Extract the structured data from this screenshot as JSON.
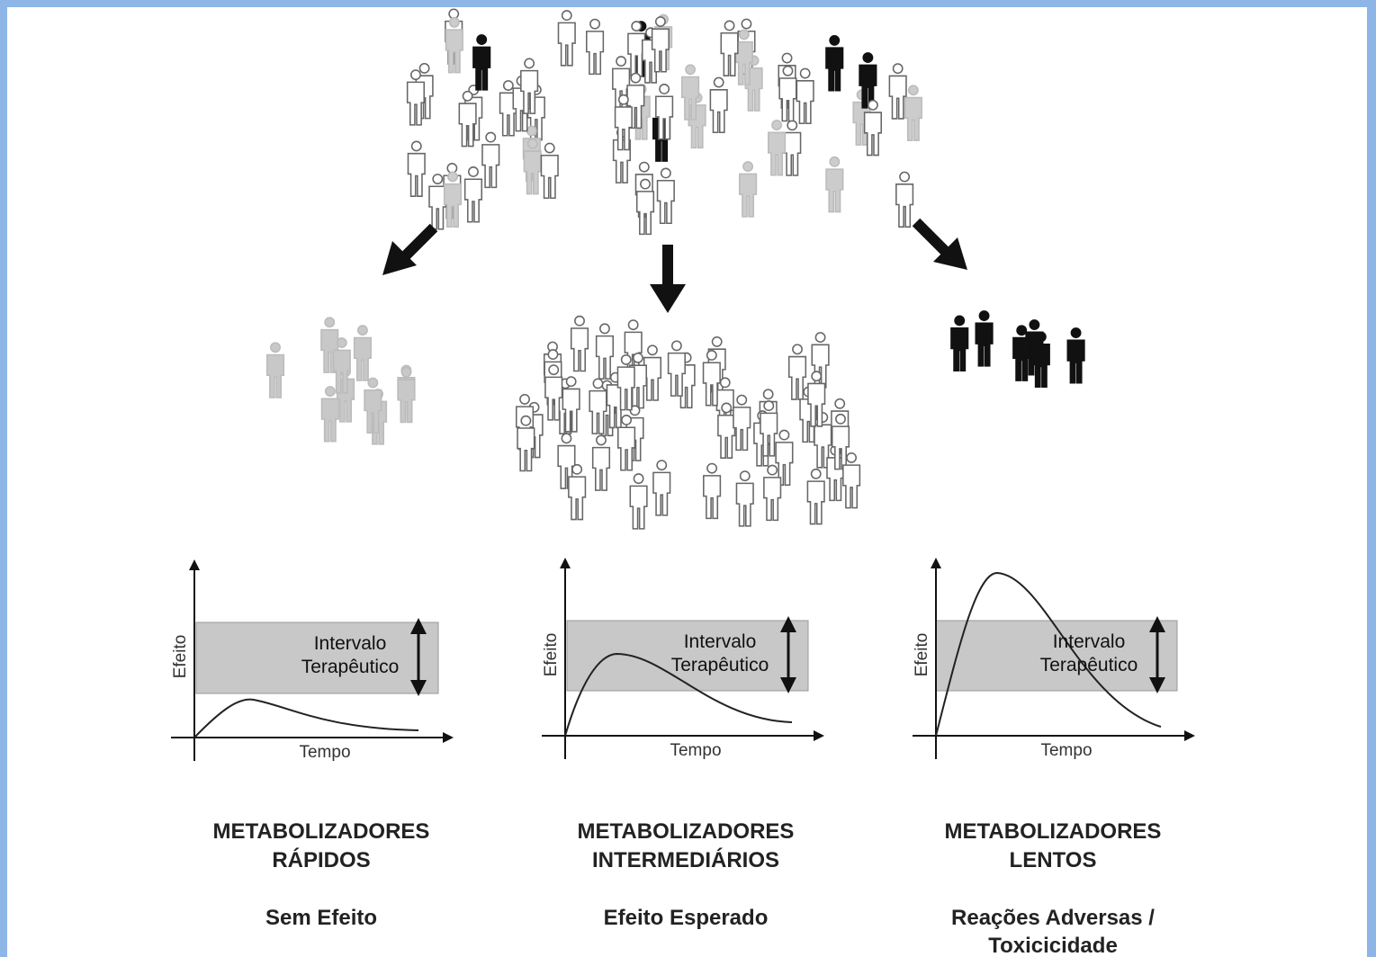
{
  "panels": [
    {
      "axis_y": "Efeito",
      "axis_x": "Tempo",
      "band_label": [
        "Intervalo",
        "Terapêutico"
      ],
      "title": [
        "METABOLIZADORES",
        "RÁPIDOS"
      ],
      "outcome": [
        "Sem Efeito"
      ]
    },
    {
      "axis_y": "Efeito",
      "axis_x": "Tempo",
      "band_label": [
        "Intervalo",
        "Terapêutico"
      ],
      "title": [
        "METABOLIZADORES",
        "INTERMEDIÁRIOS"
      ],
      "outcome": [
        "Efeito Esperado"
      ]
    },
    {
      "axis_y": "Efeito",
      "axis_x": "Tempo",
      "band_label": [
        "Intervalo",
        "Terapêutico"
      ],
      "title": [
        "METABOLIZADORES",
        "LENTOS"
      ],
      "outcome": [
        "Reações Adversas /",
        "Toxicicidade"
      ]
    }
  ]
}
